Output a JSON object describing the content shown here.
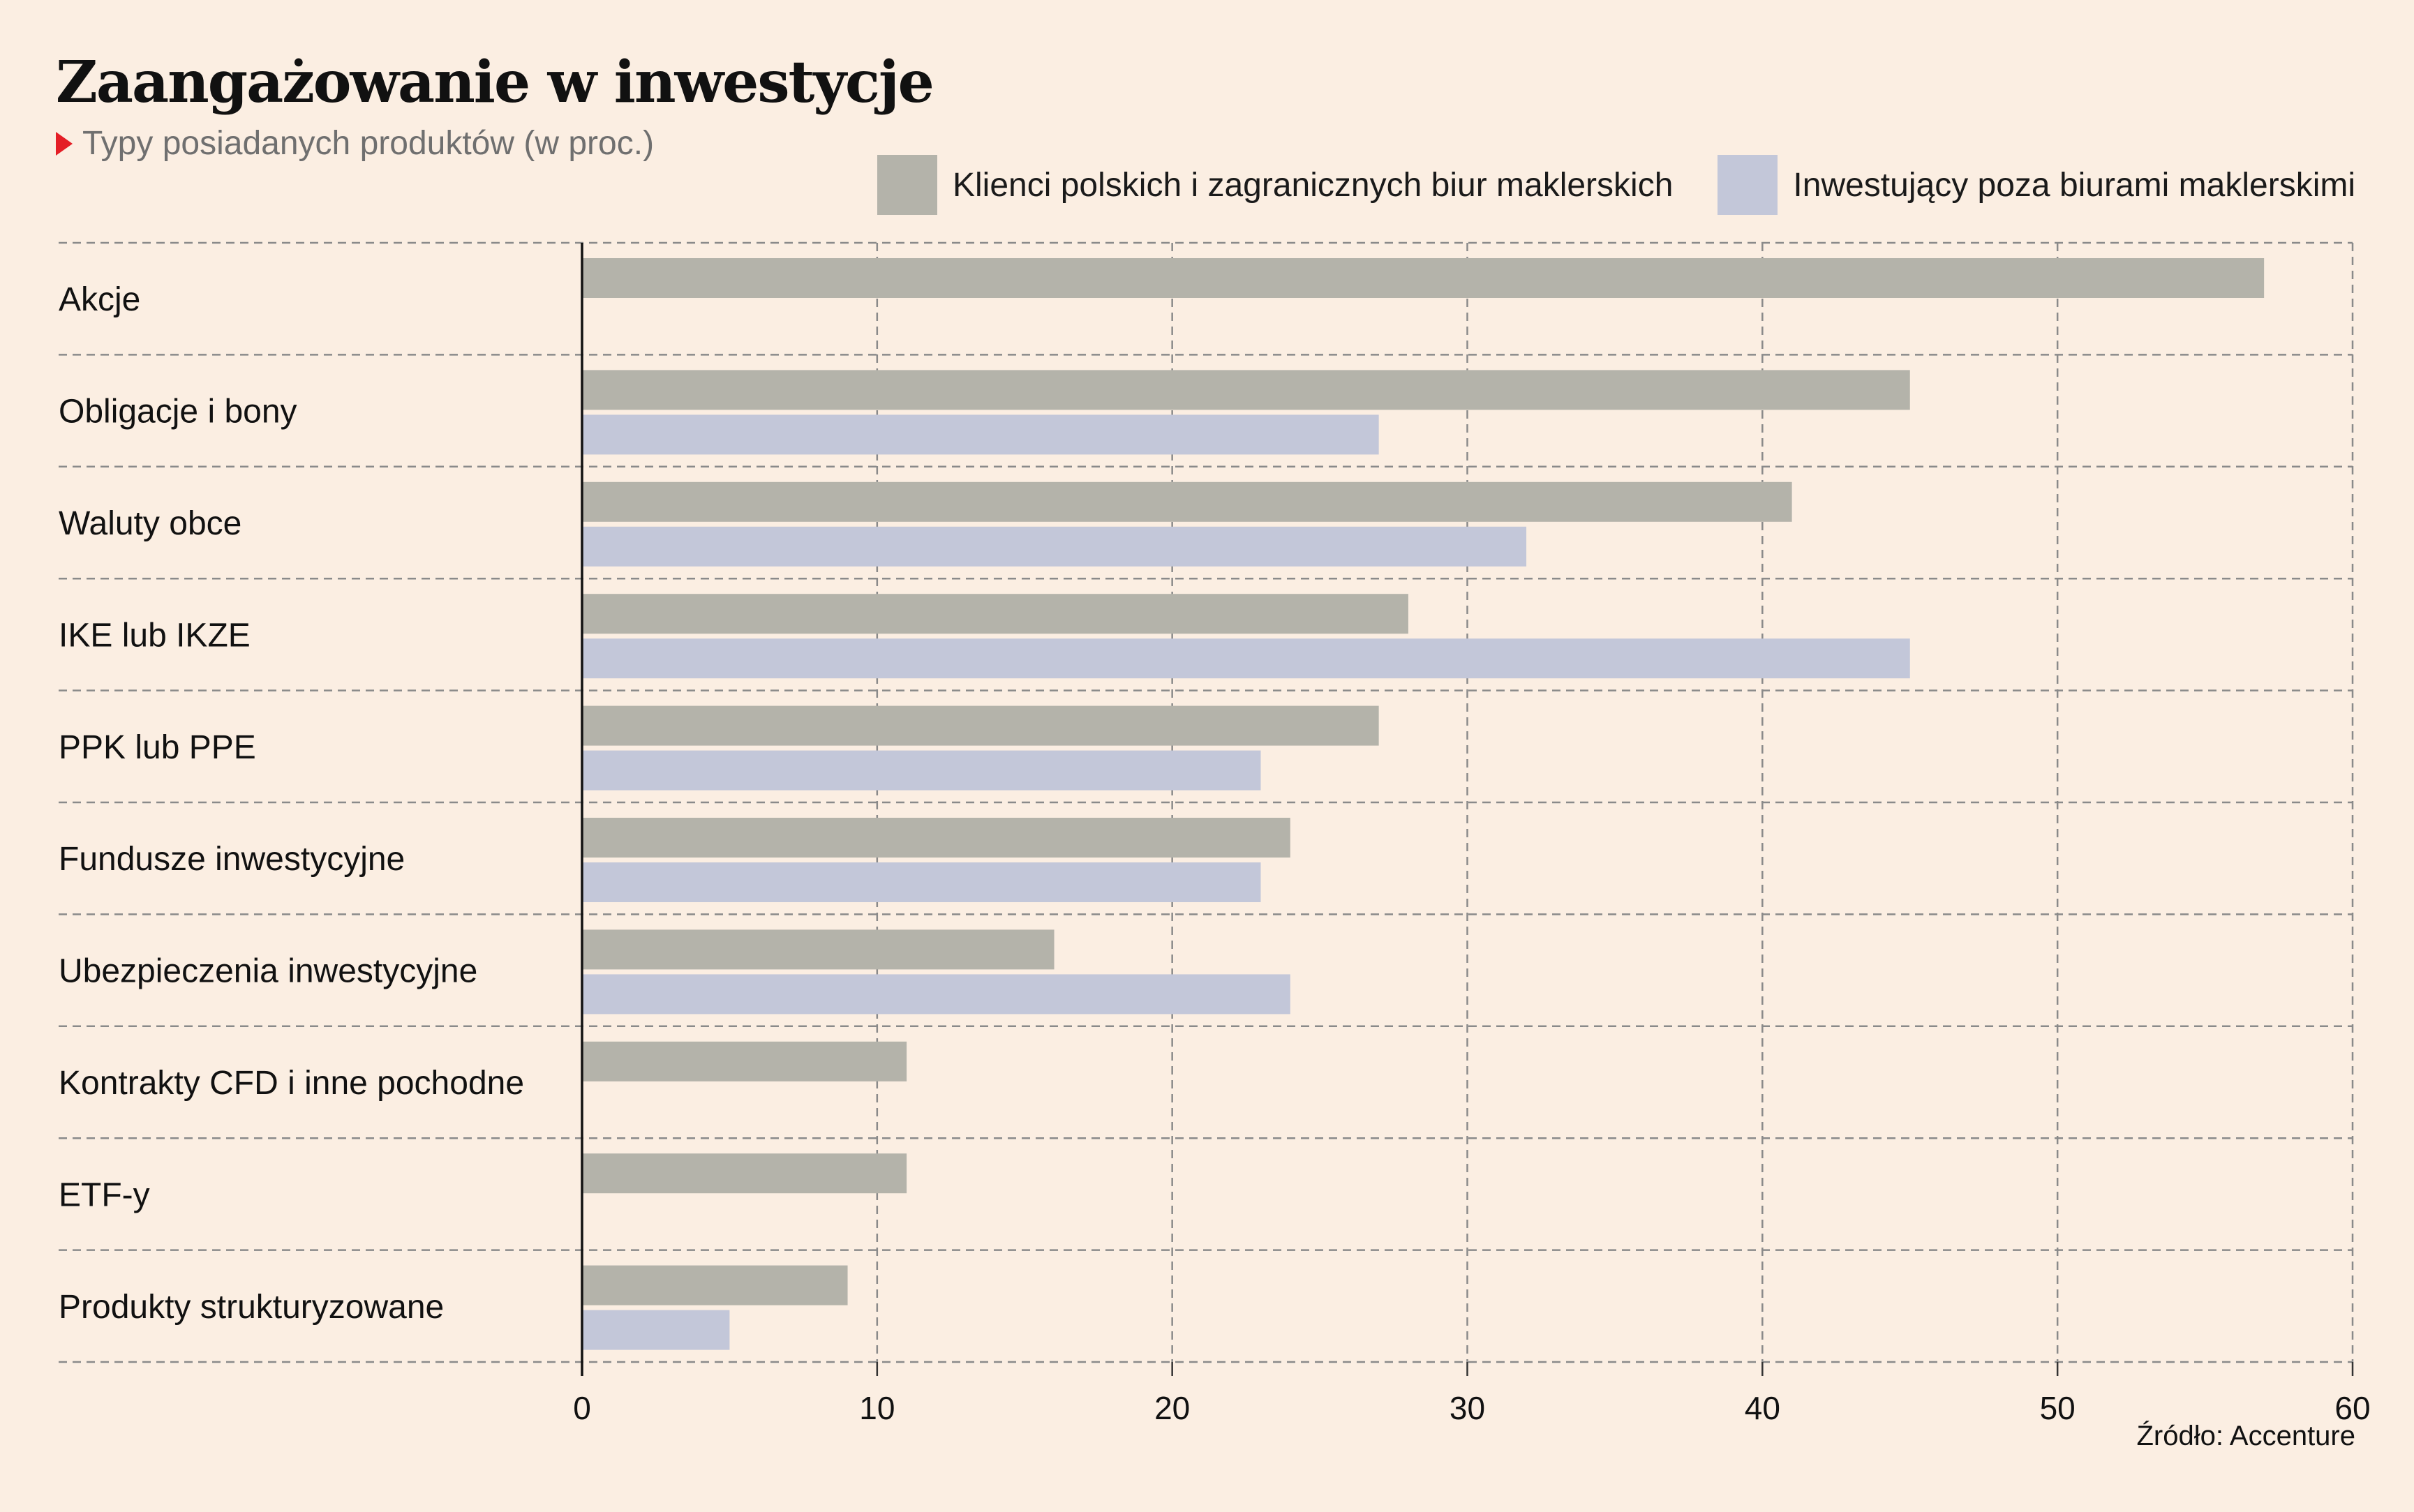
{
  "chart_data": {
    "type": "bar",
    "orientation": "horizontal",
    "title": "Zaangażowanie w inwestycje",
    "subtitle": "Typy posiadanych produktów (w proc.)",
    "source": "Źródło: Accenture",
    "categories": [
      "Akcje",
      "Obligacje i bony",
      "Waluty obce",
      "IKE lub IKZE",
      "PPK lub PPE",
      "Fundusze inwestycyjne",
      "Ubezpieczenia inwestycyjne",
      "Kontrakty CFD i inne pochodne",
      "ETF-y",
      "Produkty strukturyzowane"
    ],
    "series": [
      {
        "name": "Klienci polskich i zagranicznych biur maklerskich",
        "color": "#b4b3aa",
        "values": [
          57,
          45,
          41,
          28,
          27,
          24,
          16,
          11,
          11,
          9
        ]
      },
      {
        "name": "Inwestujący poza biurami maklerskimi",
        "color": "#c3c7d9",
        "values": [
          null,
          27,
          32,
          45,
          23,
          23,
          24,
          null,
          null,
          5
        ]
      }
    ],
    "xlim": [
      0,
      60
    ],
    "xticks": [
      "0",
      "10",
      "20",
      "30",
      "40",
      "50",
      "60"
    ],
    "grid": true,
    "legend_position": "top-right"
  }
}
